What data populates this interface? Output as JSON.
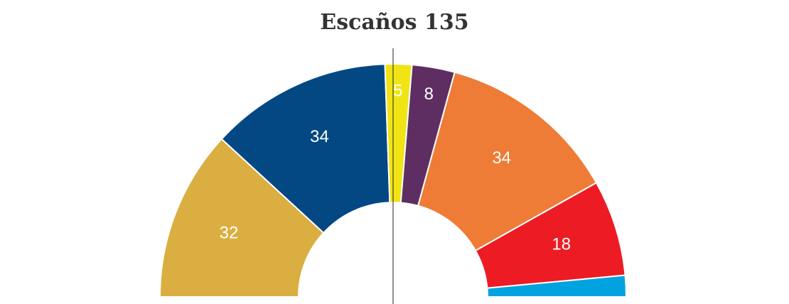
{
  "chart_data": {
    "type": "pie",
    "subtype": "parliament-half-donut",
    "title": "Escaños 135",
    "total": 135,
    "majority_marker": true,
    "series": [
      {
        "value": 32,
        "label": "32",
        "color": "#DAAE40"
      },
      {
        "value": 34,
        "label": "34",
        "color": "#034882"
      },
      {
        "value": 5,
        "label": "5",
        "color": "#F0E415"
      },
      {
        "value": 8,
        "label": "8",
        "color": "#5E2E63"
      },
      {
        "value": 34,
        "label": "34",
        "color": "#EE7C36"
      },
      {
        "value": 18,
        "label": "18",
        "color": "#ED1C24"
      },
      {
        "value": 4,
        "label": "",
        "color": "#00A3E0"
      }
    ]
  }
}
